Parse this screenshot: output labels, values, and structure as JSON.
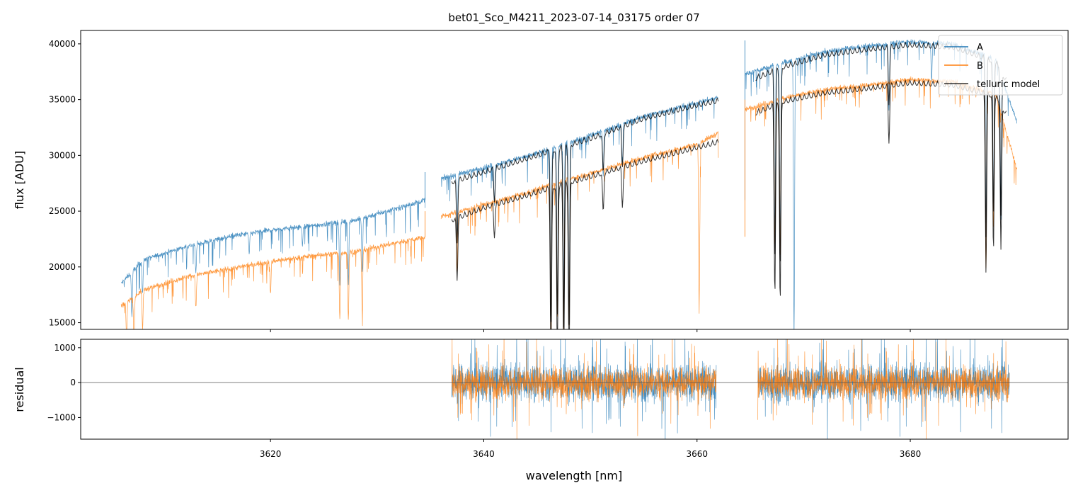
{
  "title": "bet01_Sco_M4211_2023-07-14_03175  order 07",
  "colors": {
    "A": "#1f77b4",
    "B": "#ff7f0e",
    "model": "#000000"
  },
  "chart_data": [
    {
      "type": "line",
      "panel": "top",
      "xlabel": "",
      "ylabel": "flux [ADU]",
      "xlim": [
        3602.2,
        3694.8
      ],
      "ylim": [
        14400,
        41200
      ],
      "yticks": [
        15000,
        20000,
        25000,
        30000,
        35000,
        40000
      ],
      "xticks": [
        3620,
        3640,
        3660,
        3680
      ],
      "xtick_labels_shown": false,
      "legend": {
        "placement": "top-right",
        "entries": [
          "A",
          "B",
          "telluric model"
        ]
      },
      "series": [
        {
          "name": "A",
          "color": "#1f77b4",
          "segments": [
            {
              "x": [
                3606.0,
                3608.0,
                3612.0,
                3616.0,
                3620.0,
                3624.0,
                3628.0,
                3632.0,
                3634.5
              ],
              "y": [
                18500,
                20600,
                21800,
                22700,
                23300,
                23700,
                24200,
                25300,
                26000
              ]
            },
            {
              "x": [
                3636.0,
                3640.0,
                3644.0,
                3646.0,
                3650.0,
                3655.0,
                3660.0,
                3662.0
              ],
              "y": [
                27900,
                28900,
                29900,
                30500,
                31800,
                33500,
                34700,
                35200
              ]
            },
            {
              "x": [
                3664.5,
                3668.0,
                3672.0,
                3676.0,
                3680.0,
                3684.0,
                3688.0,
                3690.0
              ],
              "y": [
                37300,
                38300,
                39300,
                39800,
                40200,
                40000,
                38600,
                33000
              ]
            }
          ],
          "absorption_lines": [
            {
              "x": 3607.0,
              "depth": 4000
            },
            {
              "x": 3608.0,
              "depth": 3000
            },
            {
              "x": 3613.0,
              "depth": 2500
            },
            {
              "x": 3618.0,
              "depth": 1800
            },
            {
              "x": 3623.0,
              "depth": 1600
            },
            {
              "x": 3626.5,
              "depth": 5500
            },
            {
              "x": 3627.3,
              "depth": 5500
            },
            {
              "x": 3628.6,
              "depth": 5000
            },
            {
              "x": 3637.5,
              "depth": 5500
            },
            {
              "x": 3641.0,
              "depth": 3500
            },
            {
              "x": 3646.3,
              "depth": 15000
            },
            {
              "x": 3646.9,
              "depth": 14000
            },
            {
              "x": 3647.5,
              "depth": 15000
            },
            {
              "x": 3648.0,
              "depth": 15000
            },
            {
              "x": 3651.2,
              "depth": 4000
            },
            {
              "x": 3653.0,
              "depth": 3500
            },
            {
              "x": 3667.3,
              "depth": 15000
            },
            {
              "x": 3667.8,
              "depth": 16000
            },
            {
              "x": 3669.1,
              "depth": 25000
            },
            {
              "x": 3678.0,
              "depth": 6000
            },
            {
              "x": 3682.0,
              "depth": 3500
            },
            {
              "x": 3687.1,
              "depth": 15000
            },
            {
              "x": 3687.8,
              "depth": 13000
            },
            {
              "x": 3688.5,
              "depth": 13000
            }
          ],
          "spikes": [
            {
              "x": 3634.5,
              "y": 28500
            },
            {
              "x": 3664.5,
              "y": 40300
            }
          ]
        },
        {
          "name": "B",
          "color": "#ff7f0e",
          "segments": [
            {
              "x": [
                3606.0,
                3608.0,
                3612.0,
                3616.0,
                3620.0,
                3624.0,
                3628.0,
                3632.0,
                3634.5
              ],
              "y": [
                16500,
                17900,
                19100,
                19800,
                20500,
                21000,
                21400,
                22200,
                22700
              ]
            },
            {
              "x": [
                3636.0,
                3640.0,
                3644.0,
                3646.0,
                3650.0,
                3655.0,
                3660.0,
                3662.0
              ],
              "y": [
                24500,
                25600,
                26600,
                27300,
                28400,
                29800,
                31000,
                32000
              ]
            },
            {
              "x": [
                3664.5,
                3668.0,
                3672.0,
                3676.0,
                3680.0,
                3684.0,
                3688.0,
                3690.0
              ],
              "y": [
                34100,
                35100,
                35900,
                36300,
                36800,
                36600,
                35500,
                28800
              ]
            }
          ],
          "absorption_lines": [
            {
              "x": 3606.5,
              "depth": 3000
            },
            {
              "x": 3607.2,
              "depth": 4000
            },
            {
              "x": 3608.0,
              "depth": 3500
            },
            {
              "x": 3613.0,
              "depth": 3000
            },
            {
              "x": 3620.0,
              "depth": 3000
            },
            {
              "x": 3626.5,
              "depth": 6000
            },
            {
              "x": 3627.3,
              "depth": 6000
            },
            {
              "x": 3628.6,
              "depth": 5500
            },
            {
              "x": 3637.5,
              "depth": 5200
            },
            {
              "x": 3646.3,
              "depth": 13000
            },
            {
              "x": 3646.9,
              "depth": 12000
            },
            {
              "x": 3647.5,
              "depth": 13000
            },
            {
              "x": 3648.0,
              "depth": 13000
            },
            {
              "x": 3660.2,
              "depth": 15000
            },
            {
              "x": 3663.0,
              "depth": 15000
            },
            {
              "x": 3667.3,
              "depth": 13000
            },
            {
              "x": 3667.8,
              "depth": 14000
            },
            {
              "x": 3687.1,
              "depth": 16000
            },
            {
              "x": 3687.8,
              "depth": 12000
            }
          ],
          "spikes": [
            {
              "x": 3634.5,
              "y": 25000
            },
            {
              "x": 3664.5,
              "y": 35000
            }
          ]
        },
        {
          "name": "telluric model",
          "color": "#000000",
          "segments": [
            {
              "x": [
                3637.0,
                3640.0,
                3644.0,
                3646.0
              ],
              "y": [
                27900,
                28800,
                30000,
                30600
              ]
            },
            {
              "x": [
                3646.0,
                3650.0,
                3655.0,
                3660.0,
                3662.0
              ],
              "y": [
                30600,
                31800,
                33600,
                34800,
                35200
              ]
            },
            {
              "x": [
                3665.5,
                3668.0,
                3672.0,
                3676.0,
                3680.0,
                3684.0,
                3688.0,
                3689.0
              ],
              "y": [
                37200,
                38200,
                39300,
                39800,
                40200,
                40000,
                38700,
                37000
              ]
            },
            {
              "x": [
                3637.0,
                3640.0,
                3644.0,
                3646.0
              ],
              "y": [
                24500,
                25600,
                26700,
                27300
              ]
            },
            {
              "x": [
                3646.0,
                3650.0,
                3655.0,
                3660.0,
                3662.0
              ],
              "y": [
                27300,
                28400,
                29800,
                31000,
                31500
              ]
            },
            {
              "x": [
                3665.5,
                3668.0,
                3672.0,
                3676.0,
                3680.0,
                3684.0,
                3688.0,
                3689.0
              ],
              "y": [
                34100,
                35100,
                35900,
                36300,
                36800,
                36600,
                35600,
                34000
              ]
            }
          ],
          "absorption_lines": [
            {
              "x": 3637.5,
              "depth": 5500
            },
            {
              "x": 3641.0,
              "depth": 2800
            },
            {
              "x": 3646.3,
              "depth": 16000
            },
            {
              "x": 3646.9,
              "depth": 15000
            },
            {
              "x": 3647.5,
              "depth": 16000
            },
            {
              "x": 3648.0,
              "depth": 16000
            },
            {
              "x": 3651.2,
              "depth": 3500
            },
            {
              "x": 3653.0,
              "depth": 3500
            },
            {
              "x": 3667.3,
              "depth": 17000
            },
            {
              "x": 3667.8,
              "depth": 18000
            },
            {
              "x": 3678.0,
              "depth": 5000
            },
            {
              "x": 3687.1,
              "depth": 16000
            },
            {
              "x": 3687.8,
              "depth": 14000
            },
            {
              "x": 3688.5,
              "depth": 13000
            }
          ]
        }
      ]
    },
    {
      "type": "line",
      "panel": "bottom",
      "xlabel": "wavelength [nm]",
      "ylabel": "residual",
      "xlim": [
        3602.2,
        3694.8
      ],
      "ylim": [
        -1620,
        1240
      ],
      "yticks": [
        -1000,
        0,
        1000
      ],
      "ytick_labels": [
        "−1000",
        "0",
        "1000"
      ],
      "xticks": [
        3620,
        3640,
        3660,
        3680
      ],
      "zero_line": true,
      "series": [
        {
          "name": "A",
          "color": "#1f77b4",
          "x_ranges": [
            [
              3637.0,
              3661.8
            ],
            [
              3665.7,
              3689.3
            ]
          ],
          "spread": 1000
        },
        {
          "name": "B",
          "color": "#ff7f0e",
          "x_ranges": [
            [
              3637.0,
              3661.8
            ],
            [
              3665.7,
              3689.3
            ]
          ],
          "spread": 850
        }
      ]
    }
  ]
}
